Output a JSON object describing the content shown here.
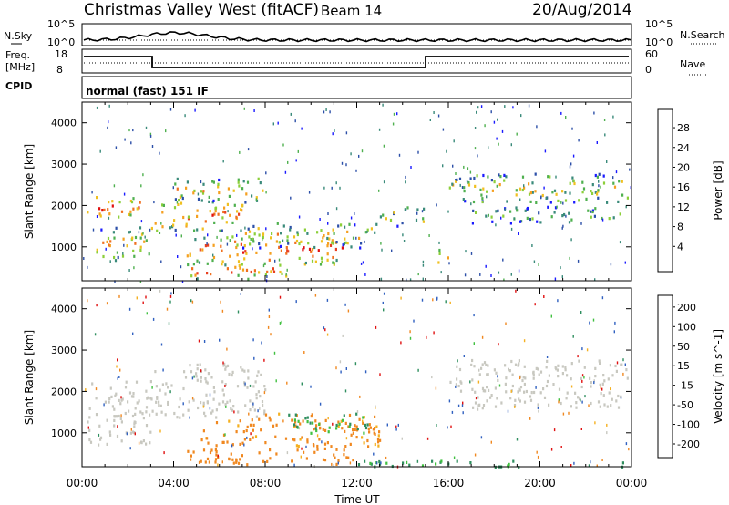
{
  "header": {
    "title": "Christmas Valley West (fitACF)",
    "beam": "Beam 14",
    "date": "20/Aug/2014"
  },
  "noise_panel": {
    "left_label": "N.Sky",
    "right_label": "N.Search",
    "left_ticks": [
      "10^5",
      "10^0"
    ],
    "right_ticks": [
      "10^5",
      "10^0"
    ]
  },
  "freq_panel": {
    "left_label_1": "Freq.",
    "left_label_2": "[MHz]",
    "right_label": "Nave",
    "left_ticks": [
      "18",
      "8"
    ],
    "right_ticks": [
      "60",
      "0"
    ]
  },
  "cpid": {
    "label": "CPID",
    "program": "normal (fast) 151 IF"
  },
  "x_axis": {
    "label": "Time UT",
    "ticks": [
      "00:00",
      "04:00",
      "08:00",
      "12:00",
      "16:00",
      "20:00",
      "00:00"
    ]
  },
  "chart_data": [
    {
      "type": "heatmap",
      "title": "",
      "xlabel": "Time UT",
      "ylabel": "Slant Range [km]",
      "xlim": [
        0,
        24
      ],
      "ylim": [
        180,
        4500
      ],
      "yticks": [
        1000,
        2000,
        3000,
        4000
      ],
      "colorbar": {
        "label": "Power [dB]",
        "ticks": [
          "4",
          "8",
          "12",
          "16",
          "20",
          "24",
          "28"
        ],
        "colors": [
          "#1a1aff",
          "#2c4fa8",
          "#3a8a7a",
          "#4fb04f",
          "#8ccf3a",
          "#f0c020",
          "#f5a020",
          "#f07020",
          "#e84020",
          "#e01010"
        ]
      },
      "regions": [
        {
          "t0": 0.2,
          "t1": 2.5,
          "r0": 1700,
          "r1": 2300,
          "level": 24
        },
        {
          "t0": 0.6,
          "t1": 3.0,
          "r0": 700,
          "r1": 1500,
          "level": 16
        },
        {
          "t0": 3.0,
          "t1": 7.0,
          "r0": 1400,
          "r1": 2200,
          "level": 20
        },
        {
          "t0": 4.0,
          "t1": 8.0,
          "r0": 2100,
          "r1": 2700,
          "level": 16
        },
        {
          "t0": 4.5,
          "t1": 11.5,
          "r0": 600,
          "r1": 1300,
          "level": 24
        },
        {
          "t0": 7.0,
          "t1": 13.0,
          "r0": 1000,
          "r1": 1600,
          "level": 14
        },
        {
          "t0": 4.5,
          "t1": 9.0,
          "r0": 250,
          "r1": 650,
          "level": 22
        },
        {
          "t0": 13.0,
          "t1": 15.0,
          "r0": 1500,
          "r1": 2000,
          "level": 12
        },
        {
          "t0": 16.0,
          "t1": 23.8,
          "r0": 2100,
          "r1": 2800,
          "level": 14
        },
        {
          "t0": 17.0,
          "t1": 23.5,
          "r0": 1600,
          "r1": 2000,
          "level": 8
        },
        {
          "t0": 15.5,
          "t1": 16.1,
          "r0": 600,
          "r1": 1000,
          "level": 22
        }
      ]
    },
    {
      "type": "heatmap",
      "title": "",
      "xlabel": "Time UT",
      "ylabel": "Slant Range [km]",
      "xlim": [
        0,
        24
      ],
      "ylim": [
        180,
        4500
      ],
      "yticks": [
        1000,
        2000,
        3000,
        4000
      ],
      "colorbar": {
        "label": "Velocity [m s^-1]",
        "ticks": [
          "200",
          "100",
          "50",
          "15",
          "-15",
          "-50",
          "-100",
          "-200"
        ],
        "colors": [
          "#2030a0",
          "#3060c0",
          "#2f8f5f",
          "#40c040",
          "#c8c8c0",
          "#c8c8c0",
          "#f5b020",
          "#f08820",
          "#f05020",
          "#e01010"
        ]
      },
      "regions": [
        {
          "t0": 0.2,
          "t1": 3.0,
          "r0": 700,
          "r1": 2300,
          "level": 0
        },
        {
          "t0": 3.0,
          "t1": 8.0,
          "r0": 1400,
          "r1": 2700,
          "level": 0
        },
        {
          "t0": 5.0,
          "t1": 13.0,
          "r0": 700,
          "r1": 1500,
          "level": -60
        },
        {
          "t0": 4.5,
          "t1": 12.0,
          "r0": 250,
          "r1": 650,
          "level": -70
        },
        {
          "t0": 16.0,
          "t1": 23.8,
          "r0": 2000,
          "r1": 2800,
          "level": 0
        },
        {
          "t0": 17.0,
          "t1": 23.5,
          "r0": 1600,
          "r1": 2000,
          "level": 0
        },
        {
          "t0": 9.0,
          "t1": 12.5,
          "r0": 1000,
          "r1": 1500,
          "level": 30
        },
        {
          "t0": 12.0,
          "t1": 23.8,
          "r0": 200,
          "r1": 350,
          "level": 40
        }
      ]
    }
  ]
}
